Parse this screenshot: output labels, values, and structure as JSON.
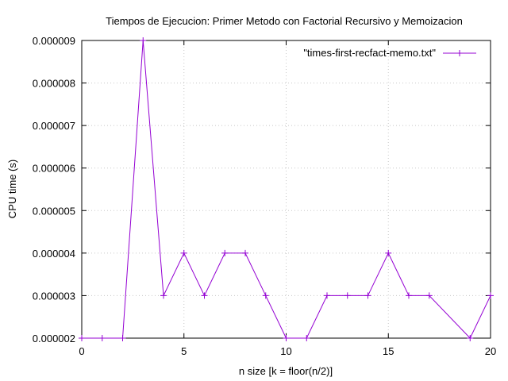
{
  "chart_data": {
    "type": "line",
    "title": "Tiempos de Ejecucion: Primer Metodo con Factorial Recursivo y Memoizacion",
    "xlabel": "n size [k = floor(n/2)]",
    "ylabel": "CPU time (s)",
    "xlim": [
      0,
      20
    ],
    "ylim": [
      2e-06,
      9e-06
    ],
    "xticks": [
      "0",
      "5",
      "10",
      "15",
      "20"
    ],
    "yticks": [
      "0.000002",
      "0.000003",
      "0.000004",
      "0.000005",
      "0.000006",
      "0.000007",
      "0.000008",
      "0.000009"
    ],
    "grid": true,
    "legend_position": "top-right",
    "series": [
      {
        "name": "\"times-first-recfact-memo.txt\"",
        "color": "#9400d3",
        "marker": "plus",
        "x": [
          0,
          1,
          2,
          3,
          4,
          5,
          6,
          7,
          8,
          9,
          10,
          11,
          12,
          13,
          14,
          15,
          16,
          17,
          19,
          20
        ],
        "y": [
          2e-06,
          2e-06,
          2e-06,
          9e-06,
          3e-06,
          4e-06,
          3e-06,
          4e-06,
          4e-06,
          3e-06,
          2e-06,
          2e-06,
          3e-06,
          3e-06,
          3e-06,
          4e-06,
          3e-06,
          3e-06,
          2e-06,
          3e-06
        ]
      }
    ]
  }
}
